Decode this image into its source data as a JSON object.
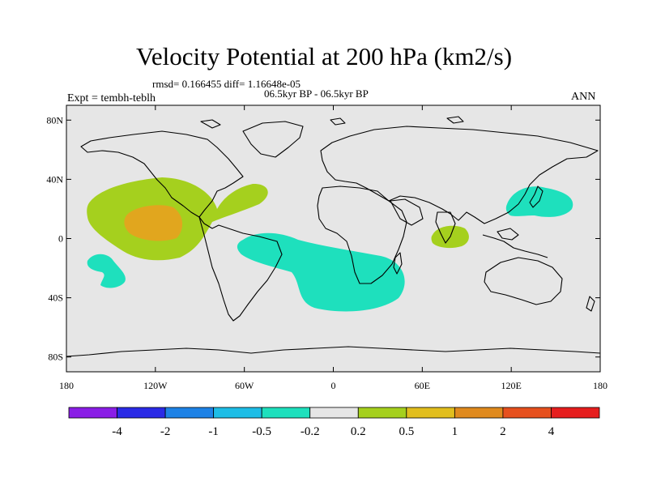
{
  "title": "Velocity Potential at 200 hPa (km2/s)",
  "stats": {
    "rmsd_label": "rmsd= 0.166455",
    "diff_label": "diff= 1.16648e-05"
  },
  "period": "06.5kyr BP - 06.5kyr BP",
  "experiment": "Expt = tembh-teblh",
  "season": "ANN",
  "map": {
    "y_ticks": [
      {
        "label": "80N",
        "lat": 80
      },
      {
        "label": "40N",
        "lat": 40
      },
      {
        "label": "0",
        "lat": 0
      },
      {
        "label": "40S",
        "lat": -40
      },
      {
        "label": "80S",
        "lat": -80
      }
    ],
    "x_ticks": [
      {
        "label": "180",
        "lon": -180
      },
      {
        "label": "120W",
        "lon": -120
      },
      {
        "label": "60W",
        "lon": -60
      },
      {
        "label": "0",
        "lon": 0
      },
      {
        "label": "60E",
        "lon": 60
      },
      {
        "label": "120E",
        "lon": 120
      },
      {
        "label": "180",
        "lon": 180
      }
    ],
    "background_color": "#e6e6e6",
    "coastline_color": "#000000",
    "anomalies": [
      {
        "name": "central-pacific-positive",
        "level": "0.2 to 0.5",
        "color": "#a5d01e"
      },
      {
        "name": "central-pacific-core",
        "level": "1 to 2",
        "color": "#e1a61e"
      },
      {
        "name": "south-atlantic-negative",
        "level": "-0.5 to -0.2",
        "color": "#1ee0bd"
      },
      {
        "name": "south-pacific-negative",
        "level": "-0.5 to -0.2",
        "color": "#1ee0bd"
      },
      {
        "name": "west-pacific-negative",
        "level": "-0.5 to -0.2",
        "color": "#1ee0bd"
      },
      {
        "name": "indian-ocean-positive",
        "level": "0.2 to 0.5",
        "color": "#a5d01e"
      }
    ]
  },
  "colorbar": {
    "colors": [
      "#8a1ee6",
      "#2a2ae6",
      "#1e82e6",
      "#1ebde6",
      "#1ee0bd",
      "#e6e6e6",
      "#a5d01e",
      "#e1be1e",
      "#e08a1e",
      "#e6501e",
      "#e61e1e"
    ],
    "labels": [
      "-4",
      "-2",
      "-1",
      "-0.5",
      "-0.2",
      "0.2",
      "0.5",
      "1",
      "2",
      "4"
    ]
  }
}
